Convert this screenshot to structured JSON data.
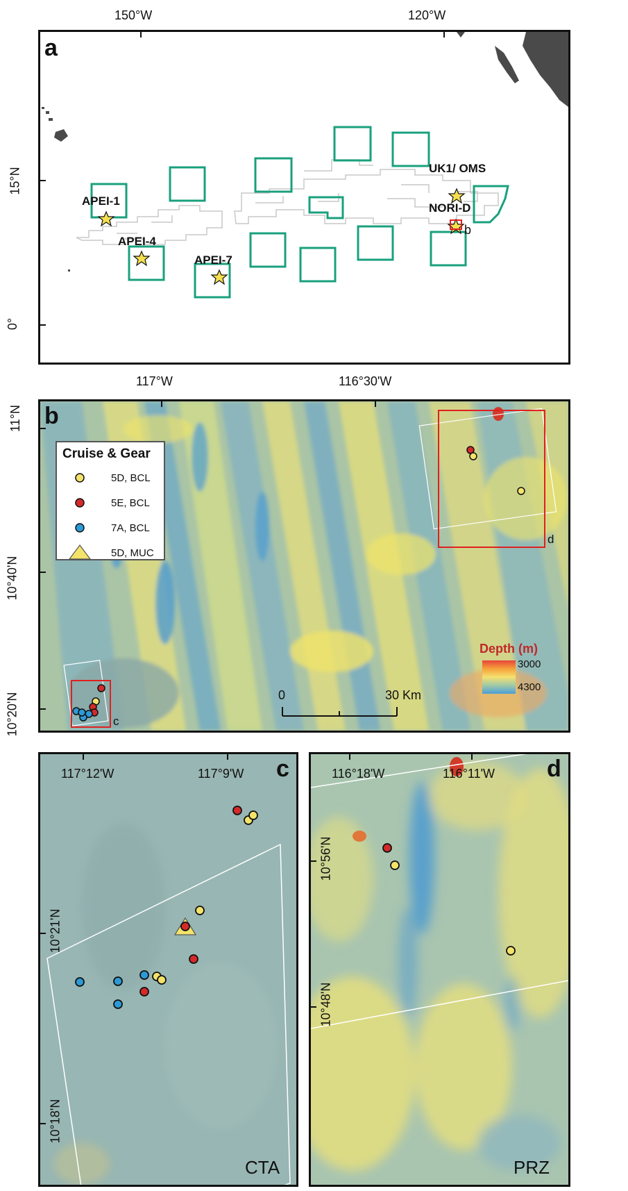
{
  "panel_a": {
    "letter": "a",
    "top_ticks": [
      "150°W",
      "120°W"
    ],
    "left_ticks": [
      "15°N",
      "0°"
    ],
    "sites": [
      "APEI-1",
      "APEI-4",
      "APEI-7",
      "UK1/ OMS",
      "NORI-D"
    ],
    "box_pointer": "b",
    "colors": {
      "apei_box": "#19a07e",
      "claims": "#c8c8c8",
      "land": "#4a4a4a",
      "star": "#f5e050",
      "highlight": "#e02020"
    }
  },
  "panel_b": {
    "letter": "b",
    "top_ticks": [
      "117°W",
      "116°30'W"
    ],
    "left_ticks": [
      "11°N",
      "10°40'N",
      "10°20'N"
    ],
    "legend": {
      "title": "Cruise & Gear",
      "items": [
        {
          "label": "5D, BCL",
          "color": "#f3e36a",
          "symbol": "circle"
        },
        {
          "label": "5E, BCL",
          "color": "#d42a2a",
          "symbol": "circle"
        },
        {
          "label": "7A, BCL",
          "color": "#2c9ad6",
          "symbol": "circle"
        },
        {
          "label": "5D, MUC",
          "color": "#f3e36a",
          "symbol": "triangle"
        }
      ]
    },
    "depth_legend": {
      "title": "Depth (m)",
      "min_label": "3000",
      "max_label": "4300",
      "colors": [
        "#e8453a",
        "#f5a23a",
        "#f5e070",
        "#9ec9a8",
        "#4a9ed8"
      ]
    },
    "scale_bar": {
      "start": "0",
      "end": "30 Km"
    },
    "box_labels": [
      "c",
      "d"
    ]
  },
  "panel_c": {
    "letter": "c",
    "top_ticks": [
      "117°12'W",
      "117°9'W"
    ],
    "left_ticks": [
      "10°21'N",
      "10°18'N"
    ],
    "site_label": "CTA"
  },
  "panel_d": {
    "letter": "d",
    "top_ticks": [
      "116°18'W",
      "116°11'W"
    ],
    "left_ticks": [
      "10°56'N",
      "10°48'N"
    ],
    "site_label": "PRZ"
  }
}
